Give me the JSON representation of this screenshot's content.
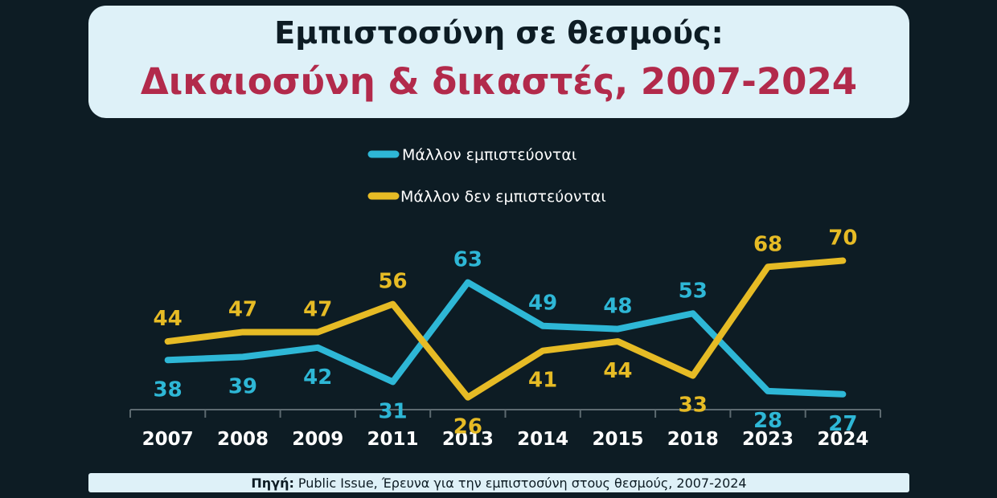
{
  "title": {
    "line1": "Εμπιστοσύνη σε θεσμούς:",
    "line2": "Δικαιοσύνη & δικαστές, 2007-2024"
  },
  "source": {
    "label": "Πηγή:",
    "text": "Public Issue, Έρευνα για την εμπιστοσύνη στους θεσμούς, 2007-2024"
  },
  "colors": {
    "trust": "#2eb7d6",
    "distrust": "#e6bb25",
    "axis": "#5d6a70",
    "tick_text": "#ffffff",
    "background": "#0d1c24"
  },
  "chart_data": {
    "type": "line",
    "categories": [
      "2007",
      "2008",
      "2009",
      "2011",
      "2013",
      "2014",
      "2015",
      "2018",
      "2023",
      "2024"
    ],
    "series": [
      {
        "name": "Μάλλον εμπιστεύονται",
        "values": [
          38,
          39,
          42,
          31,
          63,
          49,
          48,
          53,
          28,
          27
        ]
      },
      {
        "name": "Μάλλον δεν εμπιστεύονται",
        "values": [
          44,
          47,
          47,
          56,
          26,
          41,
          44,
          33,
          68,
          70
        ]
      }
    ],
    "title": "",
    "xlabel": "",
    "ylabel": "",
    "ylim": [
      0,
      100
    ],
    "legend": "top-center",
    "grid": false
  }
}
